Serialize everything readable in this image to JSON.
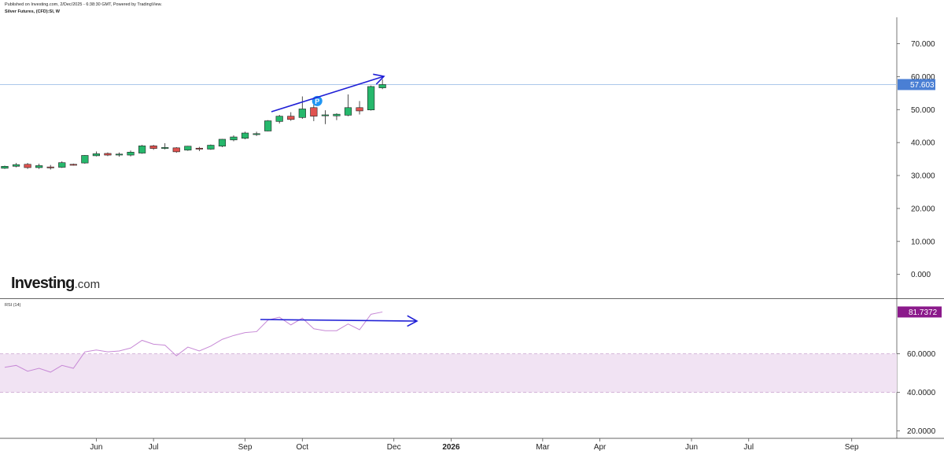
{
  "header": {
    "publish_line": "Published on Investing.com, 2/Dec/2025 - 6:38:30 GMT, Powered by TradingView.",
    "symbol_line": "Silver Futures, (CFD):SI, W"
  },
  "logo": {
    "main": "Investing",
    "suffix": ".com"
  },
  "colors": {
    "up": "#26b86c",
    "down": "#e0524f",
    "rsi_line": "#c789d6",
    "rsi_band": "#f1e3f3",
    "arrow": "#1f1fd6",
    "price_badge": "#4a7fd4",
    "rsi_badge": "#8b1a8b"
  },
  "chart_data": [
    {
      "type": "candlestick",
      "title": "Silver Futures, (CFD):SI, W",
      "y_ticks": [
        "0.000",
        "10.000",
        "20.000",
        "30.000",
        "40.000",
        "50.000",
        "60.000",
        "70.000"
      ],
      "ylim": [
        -7,
        78
      ],
      "last_price_label": "57.603",
      "last_price": 57.6,
      "marker_label": "P",
      "candles": [
        {
          "o": 32.2,
          "c": 32.8,
          "h": 33.0,
          "l": 32.0
        },
        {
          "o": 32.8,
          "c": 33.3,
          "h": 33.8,
          "l": 32.5
        },
        {
          "o": 33.4,
          "c": 32.4,
          "h": 33.8,
          "l": 32.0
        },
        {
          "o": 32.4,
          "c": 33.0,
          "h": 33.6,
          "l": 32.0
        },
        {
          "o": 32.6,
          "c": 32.5,
          "h": 33.2,
          "l": 31.8
        },
        {
          "o": 32.5,
          "c": 33.9,
          "h": 34.3,
          "l": 32.3
        },
        {
          "o": 33.4,
          "c": 33.2,
          "h": 33.6,
          "l": 33.0
        },
        {
          "o": 33.8,
          "c": 36.1,
          "h": 36.2,
          "l": 33.6
        },
        {
          "o": 36.0,
          "c": 36.6,
          "h": 37.3,
          "l": 35.8
        },
        {
          "o": 36.7,
          "c": 36.2,
          "h": 37.0,
          "l": 35.9
        },
        {
          "o": 36.3,
          "c": 36.5,
          "h": 37.0,
          "l": 35.7
        },
        {
          "o": 36.2,
          "c": 37.1,
          "h": 37.6,
          "l": 35.8
        },
        {
          "o": 36.8,
          "c": 39.0,
          "h": 39.3,
          "l": 36.6
        },
        {
          "o": 39.0,
          "c": 38.2,
          "h": 39.3,
          "l": 37.8
        },
        {
          "o": 38.4,
          "c": 38.5,
          "h": 39.8,
          "l": 37.9
        },
        {
          "o": 38.4,
          "c": 37.2,
          "h": 38.6,
          "l": 36.9
        },
        {
          "o": 37.7,
          "c": 38.9,
          "h": 39.0,
          "l": 37.5
        },
        {
          "o": 38.3,
          "c": 38.0,
          "h": 38.7,
          "l": 37.4
        },
        {
          "o": 38.0,
          "c": 39.2,
          "h": 39.4,
          "l": 37.8
        },
        {
          "o": 38.9,
          "c": 41.0,
          "h": 41.1,
          "l": 38.6
        },
        {
          "o": 40.8,
          "c": 41.7,
          "h": 42.2,
          "l": 40.4
        },
        {
          "o": 41.3,
          "c": 42.9,
          "h": 43.3,
          "l": 41.0
        },
        {
          "o": 42.5,
          "c": 42.7,
          "h": 43.3,
          "l": 42.0
        },
        {
          "o": 43.5,
          "c": 46.6,
          "h": 46.8,
          "l": 43.4
        },
        {
          "o": 46.4,
          "c": 48.0,
          "h": 48.4,
          "l": 45.8
        },
        {
          "o": 48.0,
          "c": 47.0,
          "h": 49.2,
          "l": 46.6
        },
        {
          "o": 47.6,
          "c": 50.2,
          "h": 54.0,
          "l": 47.2
        },
        {
          "o": 50.6,
          "c": 48.0,
          "h": 51.6,
          "l": 46.5
        },
        {
          "o": 48.2,
          "c": 48.4,
          "h": 49.8,
          "l": 45.6
        },
        {
          "o": 48.1,
          "c": 48.6,
          "h": 48.9,
          "l": 46.8
        },
        {
          "o": 48.3,
          "c": 50.6,
          "h": 54.6,
          "l": 48.0
        },
        {
          "o": 50.6,
          "c": 49.6,
          "h": 52.6,
          "l": 48.5
        },
        {
          "o": 49.9,
          "c": 57.0,
          "h": 57.3,
          "l": 49.7
        },
        {
          "o": 56.6,
          "c": 57.6,
          "h": 59.2,
          "l": 56.2
        }
      ]
    },
    {
      "type": "line",
      "title": "RSI (14)",
      "y_ticks": [
        "20.0000",
        "40.0000",
        "60.0000"
      ],
      "ylim": [
        17,
        88
      ],
      "band": [
        40,
        60
      ],
      "last_value_label": "81.7372",
      "last_value": 81.7,
      "values": [
        53,
        54,
        51,
        52.5,
        50.5,
        54,
        52.5,
        61,
        62,
        61,
        61.5,
        63,
        67,
        65,
        64.5,
        59,
        63.5,
        61.5,
        64,
        67.5,
        69.5,
        71,
        71.5,
        77.5,
        79,
        75,
        78.5,
        73,
        72,
        72,
        75.5,
        72.5,
        80.5,
        81.7
      ]
    }
  ],
  "x_axis": {
    "labels": [
      {
        "label": "Jun",
        "candle_index": 8
      },
      {
        "label": "Jul",
        "candle_index": 13
      },
      {
        "label": "Sep",
        "candle_index": 21
      },
      {
        "label": "Oct",
        "candle_index": 26
      },
      {
        "label": "Dec",
        "candle_index": 34
      },
      {
        "label": "2026",
        "candle_index": 39
      },
      {
        "label": "Mar",
        "candle_index": 47
      },
      {
        "label": "Apr",
        "candle_index": 52
      },
      {
        "label": "Jun",
        "candle_index": 60
      },
      {
        "label": "Jul",
        "candle_index": 65
      },
      {
        "label": "Sep",
        "candle_index": 74
      }
    ]
  }
}
